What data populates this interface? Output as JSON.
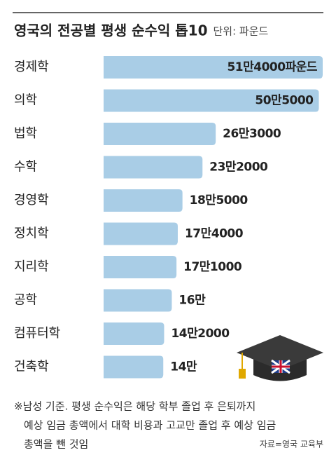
{
  "chart_data": {
    "type": "bar",
    "orientation": "horizontal",
    "title": "영국의 전공별 평생 순수익 톱10",
    "unit_label": "단위: 파운드",
    "categories": [
      "경제학",
      "의학",
      "법학",
      "수학",
      "경영학",
      "정치학",
      "지리학",
      "공학",
      "컴퓨터학",
      "건축학"
    ],
    "values": [
      514000,
      505000,
      263000,
      232000,
      185000,
      174000,
      171000,
      160000,
      142000,
      140000
    ],
    "value_labels": [
      "51만4000파운드",
      "50만5000",
      "26만3000",
      "23만2000",
      "18만5000",
      "17만4000",
      "17만1000",
      "16만",
      "14만2000",
      "14만"
    ],
    "color": "#a9cde6",
    "note": [
      "※남성 기준. 평생 순수익은 해당 학부 졸업 후 은퇴까지",
      "예상 임금 총액에서 대학 비용과 고교만 졸업 후 예상 임금",
      "총액을 뺀 것임"
    ],
    "source": "자료=영국 교육부"
  }
}
